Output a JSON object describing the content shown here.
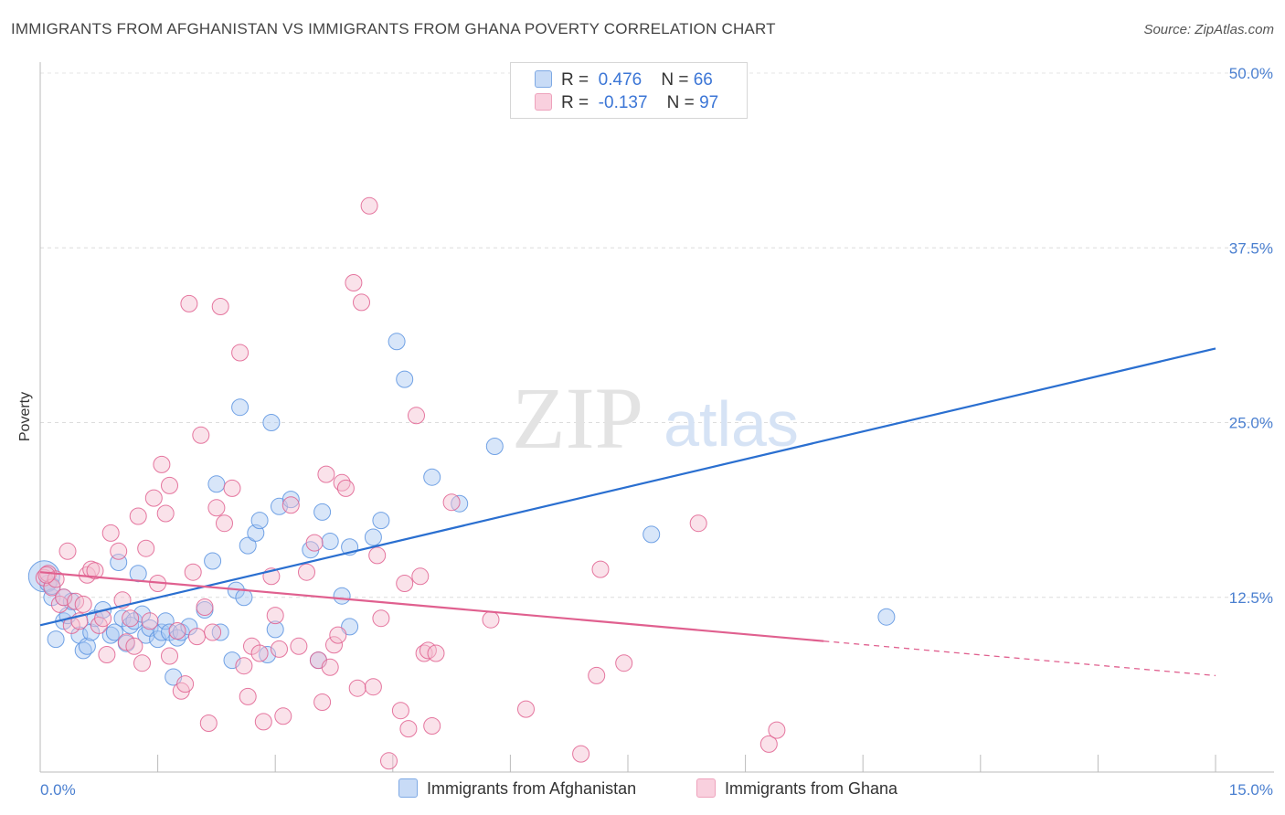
{
  "header": {
    "title": "IMMIGRANTS FROM AFGHANISTAN VS IMMIGRANTS FROM GHANA POVERTY CORRELATION CHART",
    "source": "Source: ZipAtlas.com"
  },
  "watermark": {
    "zip": "ZIP",
    "atlas": "atlas"
  },
  "legend_top": {
    "rows": [
      {
        "r_label": "R =",
        "r_value": "0.476",
        "n_label": "N =",
        "n_value": "66",
        "color": "#8db4ea"
      },
      {
        "r_label": "R =",
        "r_value": "-0.137",
        "n_label": "N =",
        "n_value": "97",
        "color": "#f2a7bf"
      }
    ]
  },
  "legend_bottom": {
    "items": [
      {
        "label": "Immigrants from Afghanistan",
        "color": "#8db4ea"
      },
      {
        "label": "Immigrants from Ghana",
        "color": "#f2a7bf"
      }
    ]
  },
  "chart_data": {
    "type": "scatter",
    "title": "IMMIGRANTS FROM AFGHANISTAN VS IMMIGRANTS FROM GHANA POVERTY CORRELATION CHART",
    "xlabel": "",
    "ylabel": "Poverty",
    "xlim": [
      0,
      15
    ],
    "ylim": [
      0,
      50
    ],
    "x_tick_labels": [
      "0.0%",
      "15.0%"
    ],
    "y_ticks": [
      12.5,
      25.0,
      37.5,
      50.0
    ],
    "y_tick_labels": [
      "12.5%",
      "25.0%",
      "37.5%",
      "50.0%"
    ],
    "grid": "horizontal dashed",
    "legend_placement": "top-center",
    "series": [
      {
        "name": "Immigrants from Afghanistan",
        "color": "#5b93e0",
        "fill": "#a9c8f2",
        "r": 0.476,
        "n": 66,
        "trend": {
          "x0": 0.0,
          "y0": 10.5,
          "x1": 15.0,
          "y1": 30.3,
          "dashed_from": null
        },
        "points": [
          [
            0.05,
            14.0
          ],
          [
            0.1,
            13.5
          ],
          [
            0.15,
            12.5
          ],
          [
            0.2,
            9.5
          ],
          [
            0.3,
            10.8
          ],
          [
            0.3,
            12.5
          ],
          [
            0.35,
            11.2
          ],
          [
            0.4,
            12.2
          ],
          [
            0.5,
            9.8
          ],
          [
            0.55,
            8.7
          ],
          [
            0.6,
            9.0
          ],
          [
            0.65,
            10.0
          ],
          [
            0.7,
            11.0
          ],
          [
            0.8,
            11.6
          ],
          [
            0.9,
            9.8
          ],
          [
            0.95,
            10.0
          ],
          [
            1.0,
            15.0
          ],
          [
            1.05,
            11.0
          ],
          [
            1.1,
            9.2
          ],
          [
            1.15,
            10.5
          ],
          [
            1.2,
            10.8
          ],
          [
            1.25,
            14.2
          ],
          [
            1.3,
            11.3
          ],
          [
            1.35,
            9.8
          ],
          [
            1.4,
            10.3
          ],
          [
            1.5,
            9.5
          ],
          [
            1.55,
            10.0
          ],
          [
            1.6,
            10.8
          ],
          [
            1.65,
            10.0
          ],
          [
            1.7,
            6.8
          ],
          [
            1.75,
            9.6
          ],
          [
            1.8,
            10.0
          ],
          [
            1.9,
            10.4
          ],
          [
            2.1,
            11.6
          ],
          [
            2.2,
            15.1
          ],
          [
            2.25,
            20.6
          ],
          [
            2.3,
            10.0
          ],
          [
            2.45,
            8.0
          ],
          [
            2.5,
            13.0
          ],
          [
            2.55,
            26.1
          ],
          [
            2.6,
            12.5
          ],
          [
            2.65,
            16.2
          ],
          [
            2.75,
            17.1
          ],
          [
            2.8,
            18.0
          ],
          [
            2.9,
            8.4
          ],
          [
            2.95,
            25.0
          ],
          [
            3.0,
            10.2
          ],
          [
            3.05,
            19.0
          ],
          [
            3.2,
            19.5
          ],
          [
            3.45,
            15.9
          ],
          [
            3.55,
            8.0
          ],
          [
            3.6,
            18.6
          ],
          [
            3.7,
            16.5
          ],
          [
            3.85,
            12.6
          ],
          [
            3.95,
            16.1
          ],
          [
            3.95,
            10.4
          ],
          [
            4.25,
            16.8
          ],
          [
            4.35,
            18.0
          ],
          [
            4.55,
            30.8
          ],
          [
            4.65,
            28.1
          ],
          [
            5.0,
            21.1
          ],
          [
            5.35,
            19.2
          ],
          [
            5.8,
            23.3
          ],
          [
            7.8,
            17.0
          ],
          [
            10.8,
            11.1
          ],
          [
            0.15,
            13.3
          ]
        ]
      },
      {
        "name": "Immigrants from Ghana",
        "color": "#e0608f",
        "fill": "#f5bfd1",
        "r": -0.137,
        "n": 97,
        "trend": {
          "x0": 0.0,
          "y0": 14.3,
          "x1": 15.0,
          "y1": 6.9,
          "dashed_from": 10.0
        },
        "points": [
          [
            0.05,
            13.9
          ],
          [
            0.1,
            14.2
          ],
          [
            0.15,
            13.2
          ],
          [
            0.2,
            13.8
          ],
          [
            0.25,
            12.0
          ],
          [
            0.3,
            12.5
          ],
          [
            0.35,
            15.8
          ],
          [
            0.4,
            10.5
          ],
          [
            0.45,
            12.2
          ],
          [
            0.5,
            10.8
          ],
          [
            0.55,
            12.0
          ],
          [
            0.6,
            14.1
          ],
          [
            0.65,
            14.5
          ],
          [
            0.7,
            14.4
          ],
          [
            0.75,
            10.5
          ],
          [
            0.8,
            11.0
          ],
          [
            0.85,
            8.4
          ],
          [
            0.9,
            17.1
          ],
          [
            1.0,
            15.8
          ],
          [
            1.05,
            12.3
          ],
          [
            1.1,
            9.3
          ],
          [
            1.15,
            11.0
          ],
          [
            1.2,
            9.0
          ],
          [
            1.25,
            18.3
          ],
          [
            1.3,
            7.8
          ],
          [
            1.35,
            16.0
          ],
          [
            1.4,
            10.8
          ],
          [
            1.45,
            19.6
          ],
          [
            1.5,
            13.5
          ],
          [
            1.55,
            22.0
          ],
          [
            1.6,
            18.5
          ],
          [
            1.65,
            8.3
          ],
          [
            1.65,
            20.5
          ],
          [
            1.75,
            10.1
          ],
          [
            1.8,
            5.8
          ],
          [
            1.85,
            6.3
          ],
          [
            1.9,
            33.5
          ],
          [
            1.95,
            14.3
          ],
          [
            2.0,
            9.7
          ],
          [
            2.05,
            24.1
          ],
          [
            2.1,
            11.8
          ],
          [
            2.15,
            3.5
          ],
          [
            2.2,
            10.0
          ],
          [
            2.25,
            18.9
          ],
          [
            2.3,
            33.3
          ],
          [
            2.35,
            17.8
          ],
          [
            2.45,
            20.3
          ],
          [
            2.55,
            30.0
          ],
          [
            2.6,
            7.6
          ],
          [
            2.65,
            5.4
          ],
          [
            2.7,
            9.0
          ],
          [
            2.8,
            8.5
          ],
          [
            2.85,
            3.6
          ],
          [
            2.95,
            14.0
          ],
          [
            3.0,
            11.2
          ],
          [
            3.05,
            8.8
          ],
          [
            3.1,
            4.0
          ],
          [
            3.2,
            19.1
          ],
          [
            3.3,
            9.0
          ],
          [
            3.4,
            14.3
          ],
          [
            3.5,
            16.4
          ],
          [
            3.55,
            8.0
          ],
          [
            3.6,
            5.0
          ],
          [
            3.65,
            21.3
          ],
          [
            3.7,
            7.5
          ],
          [
            3.75,
            9.1
          ],
          [
            3.8,
            9.8
          ],
          [
            3.85,
            20.7
          ],
          [
            3.9,
            20.3
          ],
          [
            4.0,
            35.0
          ],
          [
            4.05,
            6.0
          ],
          [
            4.1,
            33.6
          ],
          [
            4.2,
            40.5
          ],
          [
            4.25,
            6.1
          ],
          [
            4.3,
            15.5
          ],
          [
            4.35,
            11.0
          ],
          [
            4.45,
            0.8
          ],
          [
            4.6,
            4.4
          ],
          [
            4.65,
            13.5
          ],
          [
            4.7,
            3.1
          ],
          [
            4.8,
            25.5
          ],
          [
            4.85,
            14.0
          ],
          [
            4.9,
            8.5
          ],
          [
            4.95,
            8.7
          ],
          [
            5.0,
            3.3
          ],
          [
            5.05,
            8.5
          ],
          [
            5.25,
            19.3
          ],
          [
            5.75,
            10.9
          ],
          [
            6.2,
            4.5
          ],
          [
            6.9,
            1.3
          ],
          [
            7.1,
            6.9
          ],
          [
            7.15,
            14.5
          ],
          [
            7.45,
            7.8
          ],
          [
            8.4,
            17.8
          ],
          [
            9.3,
            2.0
          ],
          [
            9.4,
            3.0
          ],
          [
            0.08,
            14.1
          ]
        ]
      }
    ]
  }
}
